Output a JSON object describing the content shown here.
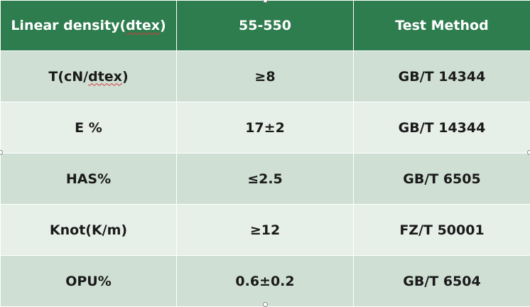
{
  "table": {
    "header": {
      "col1_prefix": "Linear density(",
      "col1_underlined": "dtex",
      "col1_suffix": ")",
      "col2": "55-550",
      "col3": "Test Method"
    },
    "rows": [
      {
        "prop_prefix": "T(cN/",
        "prop_underlined": "dtex",
        "prop_suffix": ")",
        "value": "≥8",
        "method": "GB/T 14344"
      },
      {
        "prop": "E %",
        "value": "17±2",
        "method": "GB/T 14344"
      },
      {
        "prop": "HAS%",
        "value": "≤2.5",
        "method": "GB/T 6505"
      },
      {
        "prop": "Knot(K/m)",
        "value": "≥12",
        "method": "FZ/T 50001"
      },
      {
        "prop": "OPU%",
        "value": "0.6±0.2",
        "method": "GB/T 6504"
      }
    ]
  },
  "colors": {
    "header_bg": "#2e7d4f",
    "header_text": "#ffffff",
    "row_odd_bg": "#cfdfd3",
    "row_even_bg": "#e7efe9",
    "spellcheck_underline": "#d83a3a"
  }
}
